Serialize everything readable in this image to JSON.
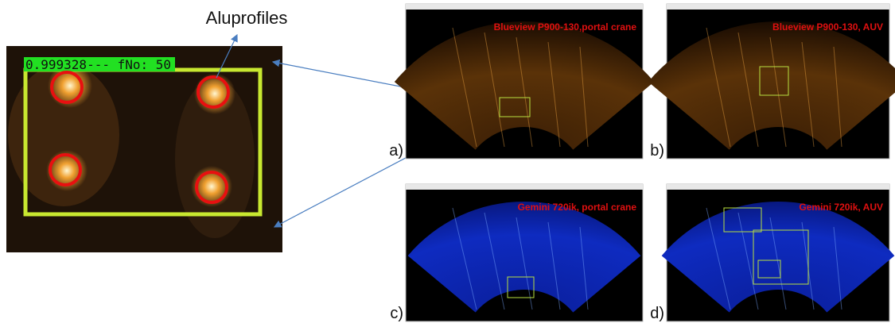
{
  "zoom": {
    "label": "Aluprofiles",
    "overlay_text": "0.999328--- fNo: 50"
  },
  "panels": [
    {
      "label": "a)",
      "caption": "Blueview P900-130,portal crane"
    },
    {
      "label": "b)",
      "caption": "Blueview P900-130, AUV"
    },
    {
      "label": "c)",
      "caption": "Gemini 720ik, portal crane"
    },
    {
      "label": "d)",
      "caption": "Gemini 720ik, AUV"
    }
  ]
}
